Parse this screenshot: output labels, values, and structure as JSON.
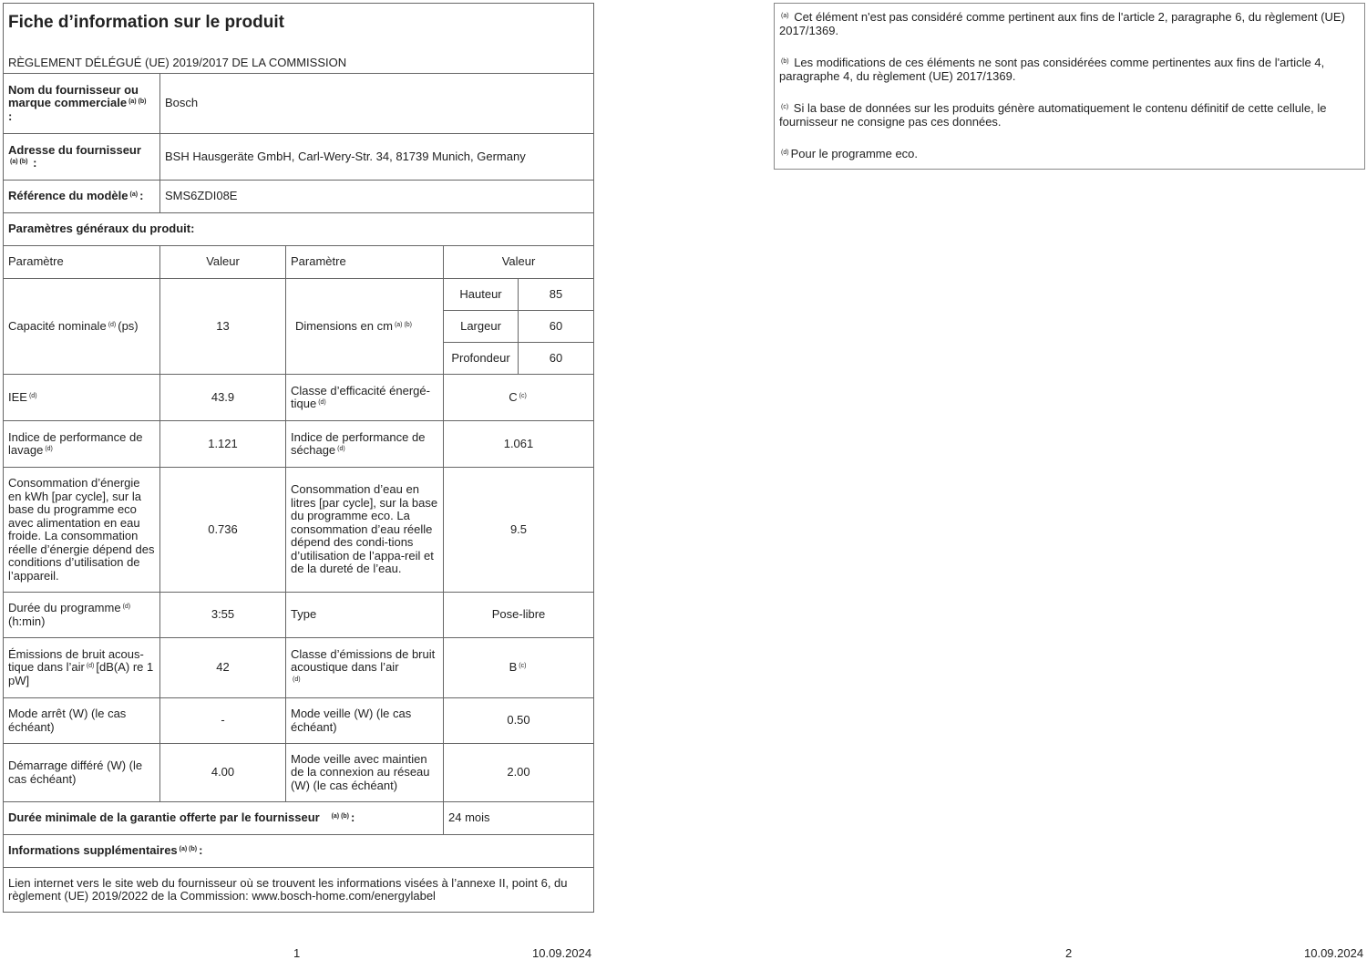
{
  "title": "Fiche d’information sur le produit",
  "subtitle": "RÈGLEMENT DÉLÉGUÉ (UE) 2019/2017 DE LA COMMISSION",
  "supplier": {
    "label": "Nom du fournisseur ou marque commerciale",
    "note": "(a) (b)",
    "suffix": ":",
    "value": "Bosch"
  },
  "address": {
    "label": "Adresse du fournisseur",
    "note": "(a) (b)",
    "suffix": ":",
    "value": "BSH Hausgeräte GmbH, Carl-Wery-Str. 34, 81739 Munich, Germany"
  },
  "model": {
    "label": "Référence du modèle",
    "note": "(a)",
    "suffix": ":",
    "value": "SMS6ZDI08E"
  },
  "general_heading": "Paramètres généraux du produit:",
  "col_headers": {
    "param1": "Paramètre",
    "value1": "Valeur",
    "param2": "Paramètre",
    "value2": "Valeur"
  },
  "capacity": {
    "label": "Capacité nominale",
    "note": "(d)",
    "suffix": "(ps)",
    "value": "13"
  },
  "dimensions": {
    "label": "Dimensions en cm",
    "note": "(a) (b)",
    "height_label": "Hauteur",
    "height": "85",
    "width_label": "Largeur",
    "width": "60",
    "depth_label": "Profondeur",
    "depth": "60"
  },
  "iee": {
    "label": "IEE",
    "note": "(d)",
    "value": "43.9"
  },
  "energy_class": {
    "label": "Classe d’efficacité énergé-tique",
    "note": "(d)",
    "value": "C",
    "value_note": "(c)"
  },
  "wash_index": {
    "label": "Indice de performance de lavage",
    "note": "(d)",
    "value": "1.121"
  },
  "dry_index": {
    "label": "Indice de performance de séchage",
    "note": "(d)",
    "value": "1.061"
  },
  "energy": {
    "label": "Consommation d’énergie en kWh [par cycle], sur la base du programme eco avec alimentation en eau froide. La consommation réelle d’énergie dépend des conditions d’utilisation de l’appareil.",
    "value": "0.736"
  },
  "water": {
    "label": "Consommation d’eau en litres [par cycle], sur la base du programme eco. La consommation d’eau réelle dépend des condi-tions d’utilisation de l’appa-reil et de la dureté de l’eau.",
    "value": "9.5"
  },
  "duration": {
    "label": "Durée du programme",
    "note": "(d)",
    "suffix": "(h:min)",
    "value": "3:55"
  },
  "type": {
    "label": "Type",
    "value": "Pose-libre"
  },
  "noise": {
    "label": "Émissions de bruit acous-tique dans l’air",
    "note": "(d)",
    "suffix": "[dB(A) re 1 pW]",
    "value": "42"
  },
  "noise_class": {
    "label": "Classe d’émissions de bruit acoustique dans l’air",
    "note": "(d)",
    "value": "B",
    "value_note": "(c)"
  },
  "off_mode": {
    "label": "Mode arrêt (W) (le cas échéant)",
    "value": "-"
  },
  "standby": {
    "label": "Mode veille (W) (le cas échéant)",
    "value": "0.50"
  },
  "delay_start": {
    "label": "Démarrage différé (W) (le cas échéant)",
    "value": "4.00"
  },
  "networked_standby": {
    "label": "Mode veille avec maintien de la connexion au réseau (W) (le cas échéant)",
    "value": "2.00"
  },
  "warranty": {
    "label": "Durée minimale de la garantie offerte par le fournisseur",
    "note": "(a) (b)",
    "suffix": ":",
    "value": "24 mois"
  },
  "additional": {
    "label": "Informations supplémentaires",
    "note": "(a) (b)",
    "suffix": ":"
  },
  "link_text": "Lien internet vers le site web du fournisseur où se trouvent les informations visées à l’annexe II, point 6, du règlement (UE) 2019/2022 de la Commission: www.bosch-home.com/energylabel",
  "footnotes": [
    {
      "mark": "(a)",
      "text": "Cet élément n'est pas considéré comme pertinent aux fins de l'article 2, paragraphe 6, du règlement (UE) 2017/1369."
    },
    {
      "mark": "(b)",
      "text": "Les modifications de ces éléments ne sont pas considérées comme pertinentes aux fins de l'article 4, paragraphe 4, du règlement (UE) 2017/1369."
    },
    {
      "mark": "(c)",
      "text": "Si la base de données sur les produits génère automatiquement le contenu définitif de cette cellule, le fournisseur ne consigne pas ces données."
    },
    {
      "mark": "(d)",
      "text": "Pour le programme eco."
    }
  ],
  "footer": {
    "page1": "1",
    "date1": "10.09.2024",
    "page2": "2",
    "date2": "10.09.2024"
  }
}
